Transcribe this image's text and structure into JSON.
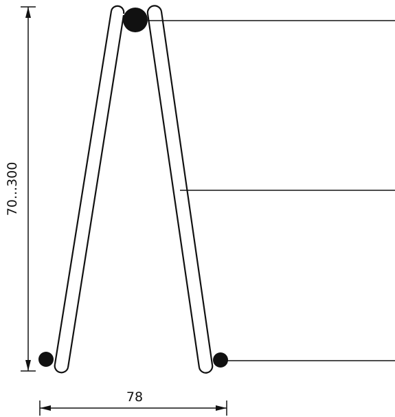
{
  "dimensions": {
    "height_label": "70...300",
    "width_label": "78"
  },
  "colors": {
    "ink": "#111111",
    "background": "#ffffff"
  }
}
